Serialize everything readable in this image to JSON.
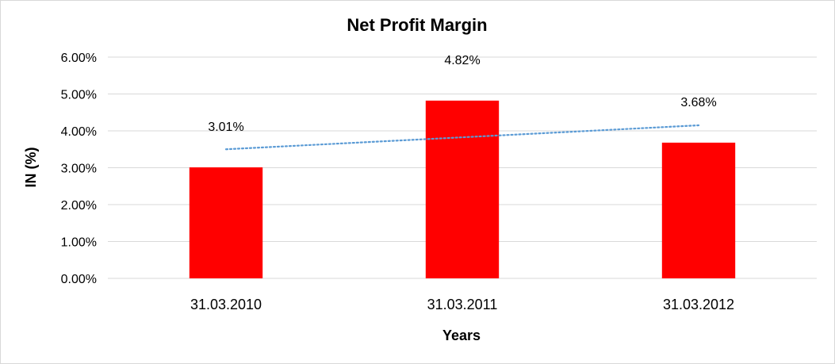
{
  "chart_data": {
    "type": "bar",
    "title": "Net Profit Margin",
    "xlabel": "Years",
    "ylabel": "IN (%)",
    "categories": [
      "31.03.2010",
      "31.03.2011",
      "31.03.2012"
    ],
    "series": [
      {
        "values": [
          3.01,
          4.82,
          3.68
        ],
        "data_labels": [
          "3.01%",
          "4.82%",
          "3.68%"
        ]
      }
    ],
    "ylim": [
      0,
      6
    ],
    "yticks": [
      0,
      1,
      2,
      3,
      4,
      5,
      6
    ],
    "ytick_labels": [
      "0.00%",
      "1.00%",
      "2.00%",
      "3.00%",
      "4.00%",
      "5.00%",
      "6.00%"
    ],
    "grid": true,
    "legend": "none",
    "trendline": {
      "type": "linear",
      "start_value": 3.5,
      "end_value": 4.15
    },
    "colors": {
      "bar": "#ff0000",
      "trendline": "#5b9bd5",
      "grid": "#d9d9d9"
    }
  }
}
